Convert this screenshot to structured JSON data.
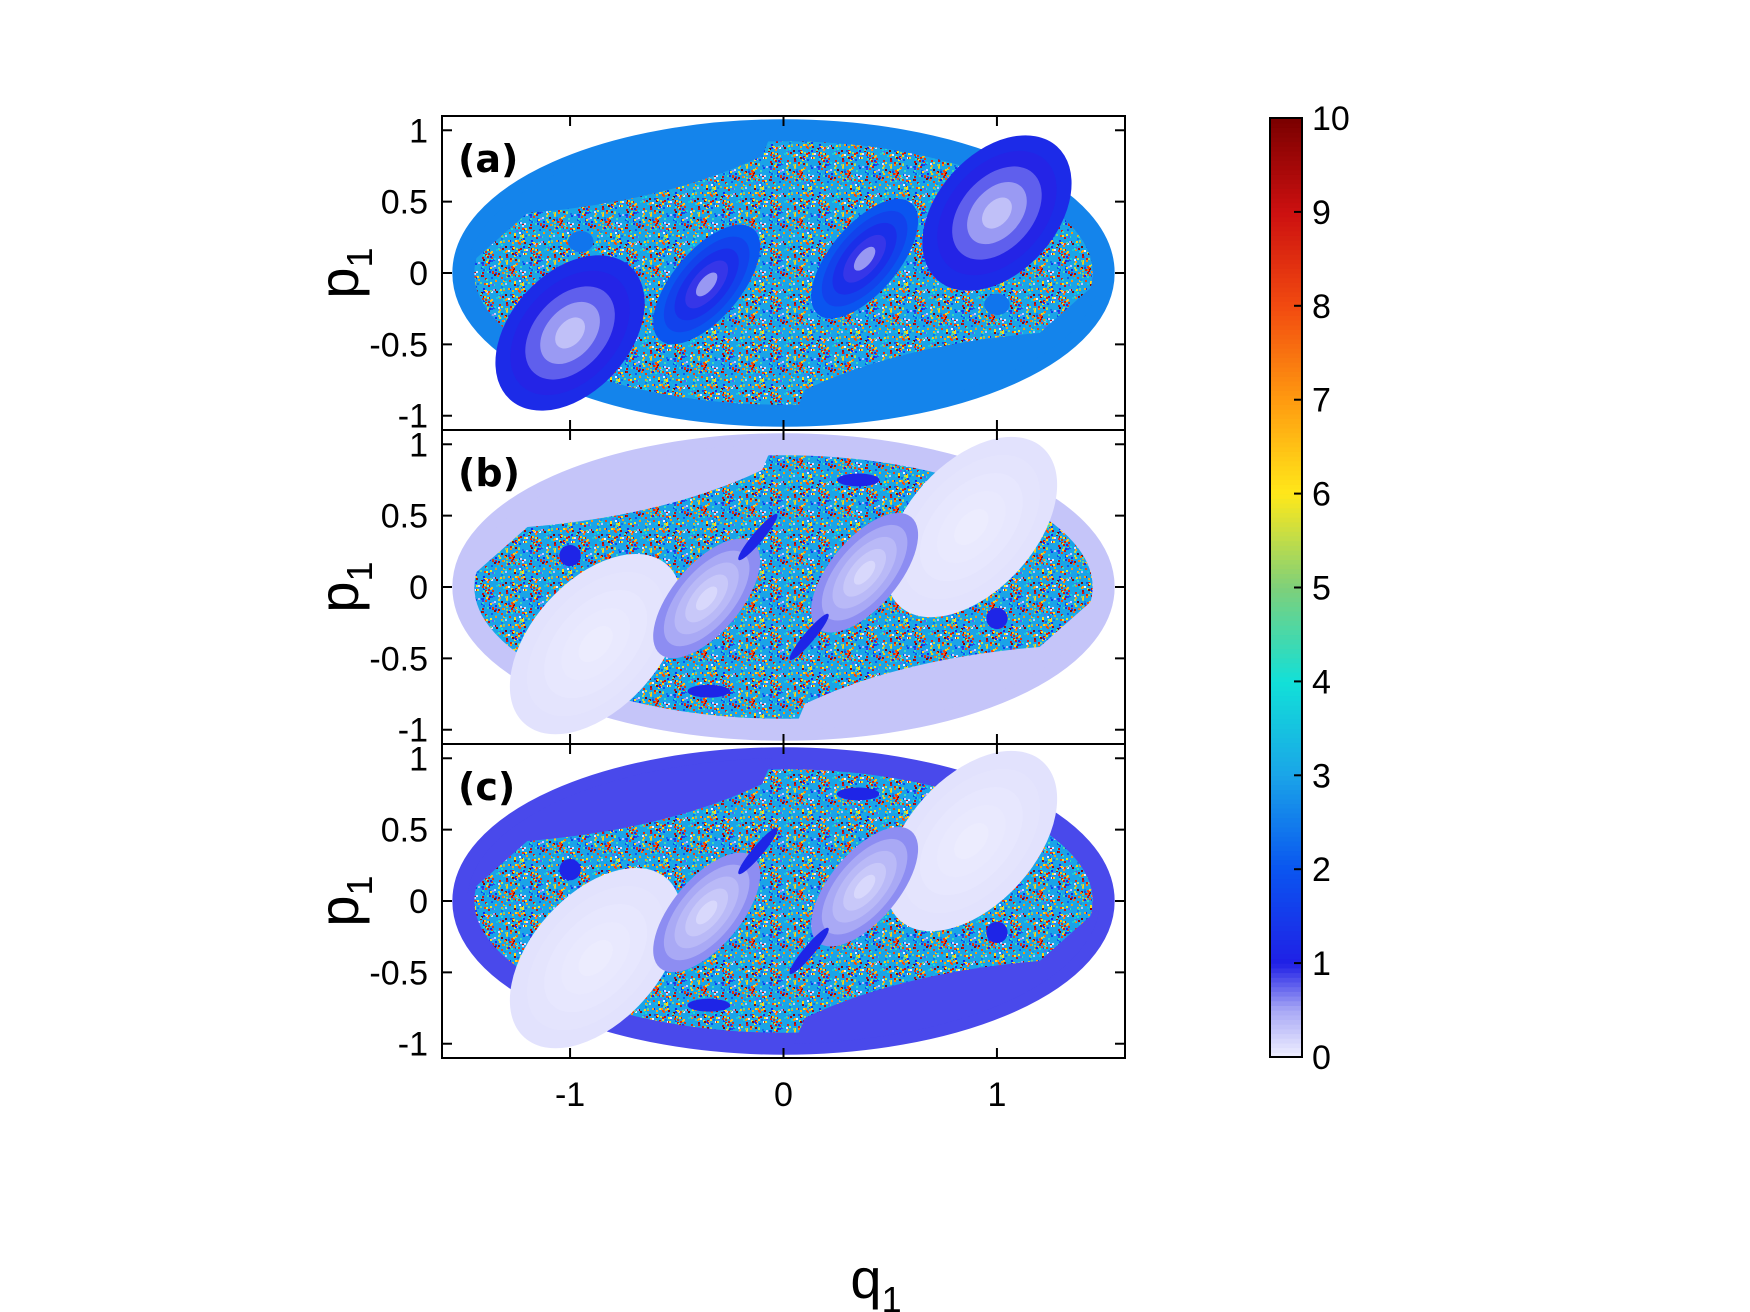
{
  "chart_data": {
    "type": "heatmap",
    "x_axis": {
      "label_main": "q",
      "label_sub": "1",
      "range": [
        -1.6,
        1.6
      ],
      "ticks": [
        {
          "value": -1,
          "label": "-1"
        },
        {
          "value": 0,
          "label": "0"
        },
        {
          "value": 1,
          "label": "1"
        }
      ]
    },
    "y_axis": {
      "label_main": "p",
      "label_sub": "1",
      "range": [
        -1.1,
        1.1
      ],
      "ticks": [
        {
          "value": 1,
          "label": "1"
        },
        {
          "value": 0.5,
          "label": "0.5"
        },
        {
          "value": 0,
          "label": "0"
        },
        {
          "value": -0.5,
          "label": "-0.5"
        },
        {
          "value": -1,
          "label": "-1"
        }
      ]
    },
    "colorbar": {
      "range": [
        0,
        10
      ],
      "ticks": [
        "0",
        "1",
        "2",
        "3",
        "4",
        "5",
        "6",
        "7",
        "8",
        "9",
        "10"
      ],
      "stops": [
        {
          "value": 0,
          "color": "#f0f0ff"
        },
        {
          "value": 0.5,
          "color": "#a8a8f5"
        },
        {
          "value": 1,
          "color": "#2020e6"
        },
        {
          "value": 2,
          "color": "#0a55f0"
        },
        {
          "value": 3,
          "color": "#1aa4e8"
        },
        {
          "value": 4,
          "color": "#12e0d8"
        },
        {
          "value": 5,
          "color": "#7ed07a"
        },
        {
          "value": 6,
          "color": "#ffe81a"
        },
        {
          "value": 7,
          "color": "#ff9a10"
        },
        {
          "value": 8,
          "color": "#f24a10"
        },
        {
          "value": 9,
          "color": "#cc1010"
        },
        {
          "value": 10,
          "color": "#7a0000"
        }
      ]
    },
    "panels": [
      {
        "label": "(a)",
        "regions": [
          {
            "kind": "domain",
            "value": 2.6
          },
          {
            "kind": "island",
            "center": [
              -1.0,
              -0.42
            ],
            "radii": [
              0.42,
              0.28
            ],
            "angle": -48,
            "value": 1.2
          },
          {
            "kind": "island",
            "center": [
              1.0,
              0.42
            ],
            "radii": [
              0.42,
              0.28
            ],
            "angle": -48,
            "value": 1.2
          },
          {
            "kind": "island",
            "center": [
              -0.36,
              -0.08
            ],
            "radii": [
              0.34,
              0.16
            ],
            "angle": -50,
            "value": 2.0
          },
          {
            "kind": "island",
            "center": [
              0.38,
              0.1
            ],
            "radii": [
              0.34,
              0.16
            ],
            "angle": -50,
            "value": 2.0
          },
          {
            "kind": "island",
            "center": [
              -0.95,
              0.22
            ],
            "radii": [
              0.06,
              0.05
            ],
            "angle": 0,
            "value": 2.4
          },
          {
            "kind": "island",
            "center": [
              1.0,
              -0.22
            ],
            "radii": [
              0.06,
              0.05
            ],
            "angle": 0,
            "value": 2.4
          }
        ]
      },
      {
        "label": "(b)",
        "regions": [
          {
            "kind": "domain",
            "value": 0.3
          },
          {
            "kind": "island",
            "center": [
              -0.88,
              -0.4
            ],
            "radii": [
              0.5,
              0.3
            ],
            "angle": -48,
            "value": 0.1
          },
          {
            "kind": "island",
            "center": [
              0.88,
              0.42
            ],
            "radii": [
              0.5,
              0.3
            ],
            "angle": -48,
            "value": 0.1
          },
          {
            "kind": "island",
            "center": [
              -0.36,
              -0.08
            ],
            "radii": [
              0.34,
              0.16
            ],
            "angle": -50,
            "value": 0.6
          },
          {
            "kind": "island",
            "center": [
              0.38,
              0.1
            ],
            "radii": [
              0.34,
              0.16
            ],
            "angle": -50,
            "value": 0.6
          },
          {
            "kind": "island",
            "center": [
              -0.12,
              0.35
            ],
            "radii": [
              0.14,
              0.025
            ],
            "angle": -50,
            "value": 1.1
          },
          {
            "kind": "island",
            "center": [
              0.12,
              -0.35
            ],
            "radii": [
              0.14,
              0.025
            ],
            "angle": -50,
            "value": 1.1
          },
          {
            "kind": "island",
            "center": [
              0.35,
              0.75
            ],
            "radii": [
              0.1,
              0.03
            ],
            "angle": 0,
            "value": 1.1
          },
          {
            "kind": "island",
            "center": [
              -0.35,
              -0.73
            ],
            "radii": [
              0.1,
              0.03
            ],
            "angle": 0,
            "value": 1.1
          },
          {
            "kind": "island",
            "center": [
              -1.0,
              0.22
            ],
            "radii": [
              0.05,
              0.05
            ],
            "angle": 0,
            "value": 1.1
          },
          {
            "kind": "island",
            "center": [
              1.0,
              -0.22
            ],
            "radii": [
              0.05,
              0.05
            ],
            "angle": 0,
            "value": 1.1
          }
        ]
      },
      {
        "label": "(c)",
        "regions": [
          {
            "kind": "domain",
            "value": 0.85
          },
          {
            "kind": "island",
            "center": [
              -0.88,
              -0.4
            ],
            "radii": [
              0.5,
              0.3
            ],
            "angle": -48,
            "value": 0.1
          },
          {
            "kind": "island",
            "center": [
              0.88,
              0.42
            ],
            "radii": [
              0.5,
              0.3
            ],
            "angle": -48,
            "value": 0.1
          },
          {
            "kind": "island",
            "center": [
              -0.36,
              -0.08
            ],
            "radii": [
              0.34,
              0.16
            ],
            "angle": -50,
            "value": 0.6
          },
          {
            "kind": "island",
            "center": [
              0.38,
              0.1
            ],
            "radii": [
              0.34,
              0.16
            ],
            "angle": -50,
            "value": 0.6
          },
          {
            "kind": "island",
            "center": [
              -0.12,
              0.35
            ],
            "radii": [
              0.14,
              0.025
            ],
            "angle": -50,
            "value": 1.1
          },
          {
            "kind": "island",
            "center": [
              0.12,
              -0.35
            ],
            "radii": [
              0.14,
              0.025
            ],
            "angle": -50,
            "value": 1.1
          },
          {
            "kind": "island",
            "center": [
              0.35,
              0.75
            ],
            "radii": [
              0.1,
              0.03
            ],
            "angle": 0,
            "value": 1.1
          },
          {
            "kind": "island",
            "center": [
              -0.35,
              -0.73
            ],
            "radii": [
              0.1,
              0.03
            ],
            "angle": 0,
            "value": 1.1
          },
          {
            "kind": "island",
            "center": [
              -1.0,
              0.22
            ],
            "radii": [
              0.05,
              0.05
            ],
            "angle": 0,
            "value": 1.1
          },
          {
            "kind": "island",
            "center": [
              1.0,
              -0.22
            ],
            "radii": [
              0.05,
              0.05
            ],
            "angle": 0,
            "value": 1.1
          }
        ]
      }
    ],
    "domain_shape": {
      "q_half_width": 1.5,
      "p_half_height": 1.0
    }
  }
}
